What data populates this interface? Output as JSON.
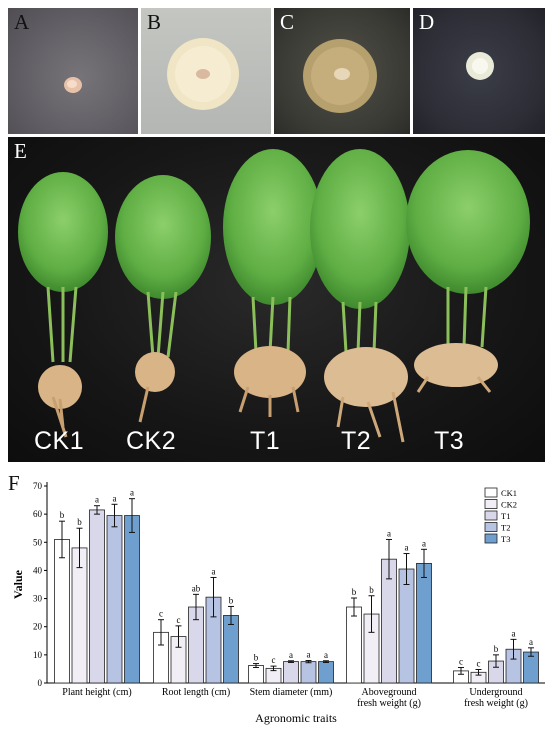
{
  "panels": {
    "a": {
      "label": "A"
    },
    "b": {
      "label": "B"
    },
    "c": {
      "label": "C"
    },
    "d": {
      "label": "D"
    },
    "e": {
      "label": "E",
      "plants": [
        "CK1",
        "CK2",
        "T1",
        "T2",
        "T3"
      ]
    },
    "f": {
      "label": "F"
    }
  },
  "chart_data": {
    "type": "bar",
    "title": "",
    "xlabel": "Agronomic traits",
    "ylabel": "Value",
    "ylim": [
      0,
      70
    ],
    "yticks": [
      0,
      10,
      20,
      30,
      40,
      50,
      60,
      70
    ],
    "legend_position": "top-right",
    "categories": [
      "Plant height (cm)",
      "Root length (cm)",
      "Stem diameter (mm)",
      "Aboveground fresh weight (g)",
      "Underground fresh weight (g)"
    ],
    "category_lines": [
      [
        "Plant height (cm)"
      ],
      [
        "Root length (cm)"
      ],
      [
        "Stem diameter (mm)"
      ],
      [
        "Aboveground",
        "fresh weight (g)"
      ],
      [
        "Underground",
        "fresh weight (g)"
      ]
    ],
    "series": [
      {
        "name": "CK1",
        "color": "#ffffff",
        "values": [
          51,
          18,
          6.2,
          27,
          4.3
        ],
        "errors": [
          6.5,
          4.5,
          0.7,
          3.2,
          1.2
        ],
        "letters": [
          "b",
          "c",
          "b",
          "b",
          "c"
        ]
      },
      {
        "name": "CK2",
        "color": "#f2eef6",
        "values": [
          48,
          16.5,
          5.2,
          24.5,
          3.8
        ],
        "errors": [
          7,
          3.8,
          0.8,
          6.5,
          1
        ],
        "letters": [
          "b",
          "c",
          "c",
          "b",
          "c"
        ]
      },
      {
        "name": "T1",
        "color": "#d9d7ea",
        "values": [
          61.5,
          27,
          7.6,
          44,
          7.8
        ],
        "errors": [
          1.5,
          4.5,
          0.3,
          7,
          2.2
        ],
        "letters": [
          "a",
          "ab",
          "a",
          "a",
          "b"
        ]
      },
      {
        "name": "T2",
        "color": "#b7c3e2",
        "values": [
          59.5,
          30.5,
          7.6,
          40.5,
          12
        ],
        "errors": [
          4,
          7,
          0.4,
          5.5,
          3.5
        ],
        "letters": [
          "a",
          "a",
          "a",
          "a",
          "a"
        ]
      },
      {
        "name": "T3",
        "color": "#6e9fce",
        "values": [
          59.5,
          24,
          7.6,
          42.5,
          11
        ],
        "errors": [
          6,
          3.2,
          0.3,
          5,
          1.5
        ],
        "letters": [
          "a",
          "b",
          "a",
          "a",
          "a"
        ]
      }
    ]
  }
}
